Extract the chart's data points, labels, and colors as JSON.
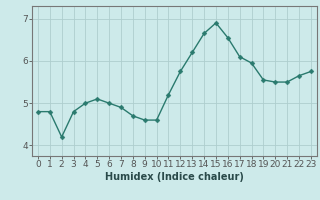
{
  "x": [
    0,
    1,
    2,
    3,
    4,
    5,
    6,
    7,
    8,
    9,
    10,
    11,
    12,
    13,
    14,
    15,
    16,
    17,
    18,
    19,
    20,
    21,
    22,
    23
  ],
  "y": [
    4.8,
    4.8,
    4.2,
    4.8,
    5.0,
    5.1,
    5.0,
    4.9,
    4.7,
    4.6,
    4.6,
    5.2,
    5.75,
    6.2,
    6.65,
    6.9,
    6.55,
    6.1,
    5.95,
    5.55,
    5.5,
    5.5,
    5.65,
    5.75
  ],
  "ylim": [
    3.75,
    7.3
  ],
  "yticks": [
    4,
    5,
    6,
    7
  ],
  "xlabel": "Humidex (Indice chaleur)",
  "line_color": "#2a7a6e",
  "marker_color": "#2a7a6e",
  "bg_color": "#cdeaea",
  "grid_color": "#aecece",
  "axis_color": "#555555",
  "label_color": "#2a4a4a",
  "xlabel_fontsize": 7,
  "tick_fontsize": 6.5,
  "linewidth": 1.0,
  "markersize": 2.5
}
